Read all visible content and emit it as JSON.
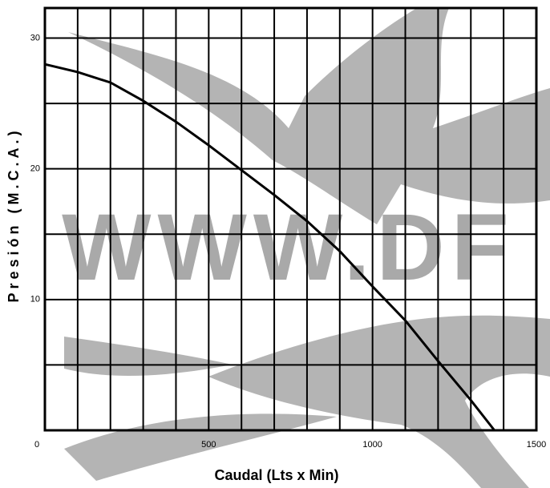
{
  "chart_data": {
    "type": "line",
    "x_label": "Caudal (Lts x Min)",
    "y_label": "Presión (M.C.A.)",
    "watermark": "WWW.DF",
    "x": [
      0,
      100,
      200,
      300,
      400,
      500,
      600,
      700,
      800,
      900,
      1000,
      1100,
      1200,
      1300,
      1372
    ],
    "values": [
      28.0,
      27.4,
      26.6,
      25.2,
      23.6,
      21.8,
      19.9,
      18.0,
      16.0,
      13.7,
      11.0,
      8.4,
      5.3,
      2.3,
      0
    ],
    "color": "#000000",
    "xlim": [
      0,
      1500
    ],
    "ylim": [
      0,
      32.3
    ],
    "xticks": [
      0,
      500,
      1000,
      1500
    ],
    "yticks": [
      10,
      20,
      30
    ],
    "xgrid": [
      100,
      200,
      300,
      400,
      500,
      600,
      700,
      800,
      900,
      1000,
      1100,
      1200,
      1300,
      1400
    ],
    "ygrid": [
      5,
      10,
      15,
      20,
      25,
      30
    ],
    "grid": true
  }
}
